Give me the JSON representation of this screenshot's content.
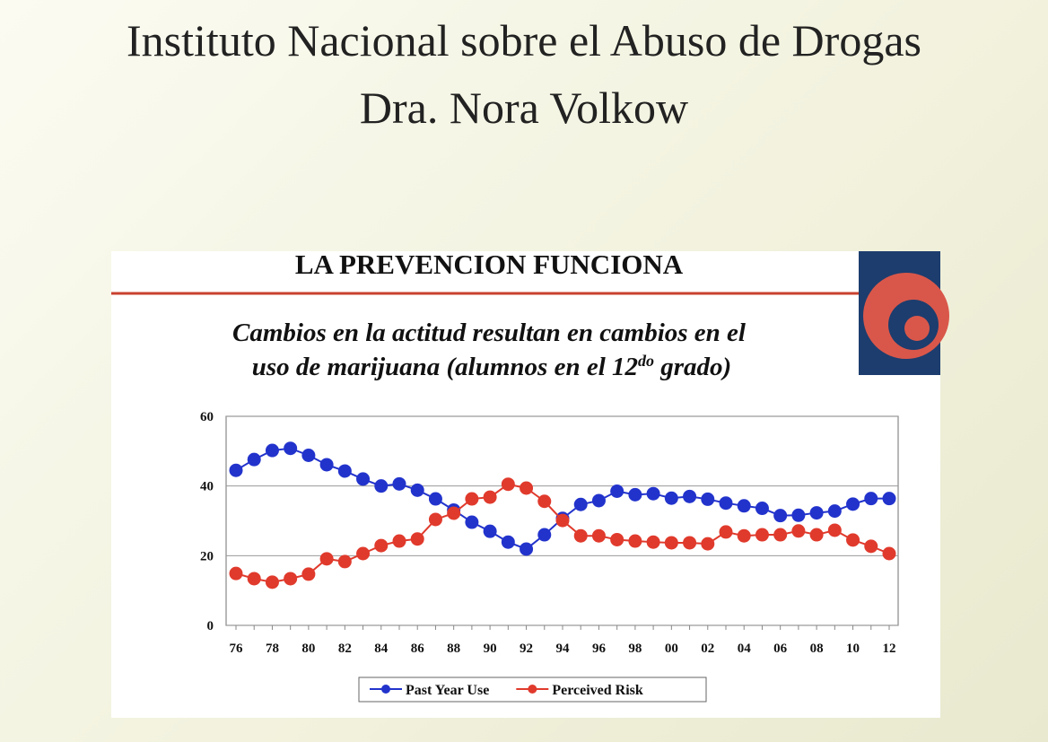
{
  "header": {
    "title": "Instituto Nacional sobre el Abuso de Drogas",
    "subtitle": "Dra. Nora Volkow"
  },
  "chart_data": {
    "type": "line",
    "title": "LA PREVENCION FUNCIONA",
    "subtitle": [
      "Cambios en la actitud resultan en cambios en el",
      "uso de marijuana (alumnos en el  12",
      "do",
      " grado)"
    ],
    "categories": [
      "76",
      null,
      "78",
      null,
      "80",
      null,
      "82",
      null,
      "84",
      null,
      "86",
      null,
      "88",
      null,
      "90",
      null,
      "92",
      null,
      "94",
      null,
      "96",
      null,
      "98",
      null,
      "00",
      null,
      "02",
      null,
      "04",
      null,
      "06",
      null,
      "08",
      null,
      "10",
      null,
      "12"
    ],
    "series": [
      {
        "name": "Past Year Use",
        "color": "#2233cc",
        "values": [
          44.5,
          47.6,
          50.2,
          50.8,
          48.8,
          46.1,
          44.3,
          42.0,
          40.0,
          40.6,
          38.8,
          36.3,
          33.1,
          29.6,
          27.0,
          23.9,
          21.9,
          26.0,
          30.7,
          34.7,
          35.8,
          38.5,
          37.5,
          37.8,
          36.5,
          37.0,
          36.2,
          35.1,
          34.3,
          33.6,
          31.5,
          31.6,
          32.3,
          32.8,
          34.8,
          36.4,
          36.4
        ]
      },
      {
        "name": "Perceived Risk",
        "color": "#e03a2c",
        "values": [
          14.9,
          13.4,
          12.4,
          13.4,
          14.7,
          19.1,
          18.3,
          20.6,
          22.9,
          24.2,
          24.8,
          30.4,
          32.2,
          36.3,
          36.8,
          40.5,
          39.4,
          35.6,
          30.1,
          25.7,
          25.7,
          24.6,
          24.2,
          23.9,
          23.7,
          23.7,
          23.4,
          26.8,
          25.7,
          26.0,
          26.0,
          27.1,
          26.0,
          27.3,
          24.5,
          22.7,
          20.6
        ]
      }
    ],
    "ylim": [
      0,
      60
    ],
    "yticks": [
      0,
      20,
      40,
      60
    ],
    "grid": true,
    "legend": "bottom"
  }
}
